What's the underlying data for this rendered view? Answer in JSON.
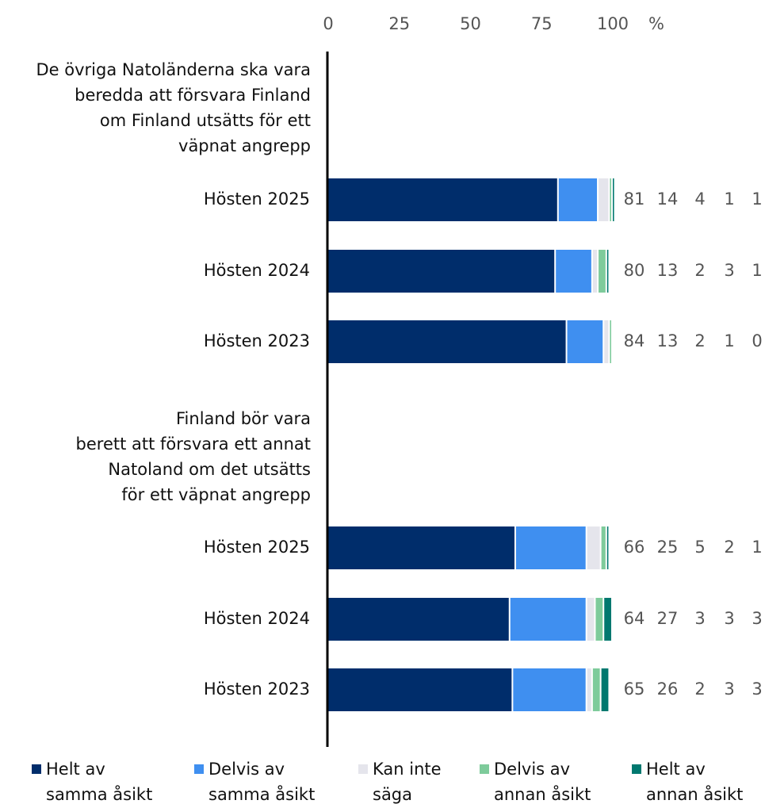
{
  "chart_data": {
    "type": "stacked-bar-horizontal",
    "unit": "%",
    "xlim": [
      0,
      100
    ],
    "xticks": [
      0,
      25,
      50,
      75,
      100
    ],
    "group_labels": [
      "De övriga Natoländerna ska vara\nberedda att försvara Finland\nom Finland utsätts för ett\nväpnat angrepp",
      "Finland bör vara\nberett att försvara ett annat\nNatoland om det utsätts\nför ett väpnat angrepp"
    ],
    "categories": [
      "Hösten 2025",
      "Hösten 2024",
      "Hösten 2023",
      "Hösten 2025",
      "Hösten 2024",
      "Hösten 2023"
    ],
    "series": [
      {
        "name": "Helt av\nsamma åsikt",
        "color": "#002d6b",
        "values": [
          81,
          80,
          84,
          66,
          64,
          65
        ]
      },
      {
        "name": "Delvis av\nsamma åsikt",
        "color": "#3f8ff0",
        "values": [
          14,
          13,
          13,
          25,
          27,
          26
        ]
      },
      {
        "name": "Kan inte\nsäga",
        "color": "#e5e5ec",
        "values": [
          4,
          2,
          2,
          5,
          3,
          2
        ]
      },
      {
        "name": "Delvis av\nannan åsikt",
        "color": "#7ecb9b",
        "values": [
          1,
          3,
          1,
          2,
          3,
          3
        ]
      },
      {
        "name": "Helt av\nannan åsikt",
        "color": "#00786f",
        "values": [
          1,
          1,
          0,
          1,
          3,
          3
        ]
      }
    ]
  }
}
